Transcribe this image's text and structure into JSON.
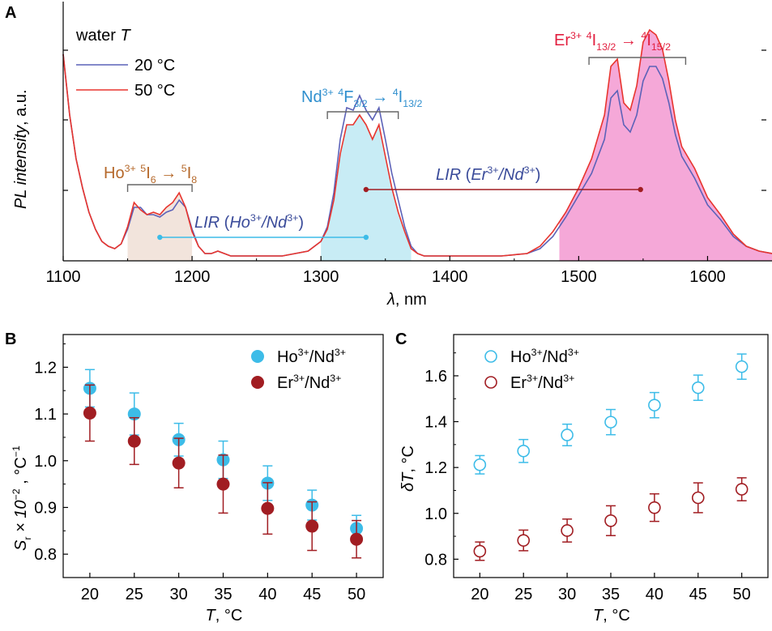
{
  "colors": {
    "blue_line": "#5c62b8",
    "red_line": "#e8352e",
    "ho_marker": "#3dbce8",
    "er_marker": "#a11d22",
    "ho_fill": "#f2e4dc",
    "nd_fill": "#c8ecf5",
    "er_fill": "#f5a8d8",
    "ho_text": "#b5682a",
    "nd_text": "#2f8fce",
    "er_text": "#e21f3f",
    "lir_text": "#3a4b9a",
    "lir_ho_line": "#3dbce8",
    "lir_er_line": "#a11d22"
  },
  "chart_data": [
    {
      "panel": "A",
      "type": "line",
      "xlabel_symbol": "λ",
      "xlabel_unit": ", nm",
      "ylabel_a": "PL intensity",
      "ylabel_b": ", a.u.",
      "xlim": [
        1100,
        1650
      ],
      "ylim": [
        0,
        1
      ],
      "x_ticks": [
        1100,
        1200,
        1300,
        1400,
        1500,
        1600
      ],
      "y_ticks_labeled": false,
      "legend_title_a": "water ",
      "legend_title_b": "T",
      "legend_position": "top-left",
      "series": [
        {
          "name": "20 °C",
          "color": "#5c62b8",
          "points": [
            [
              1100,
              0.85
            ],
            [
              1105,
              0.6
            ],
            [
              1110,
              0.42
            ],
            [
              1115,
              0.3
            ],
            [
              1120,
              0.2
            ],
            [
              1125,
              0.13
            ],
            [
              1130,
              0.08
            ],
            [
              1135,
              0.06
            ],
            [
              1140,
              0.05
            ],
            [
              1145,
              0.07
            ],
            [
              1150,
              0.13
            ],
            [
              1155,
              0.22
            ],
            [
              1160,
              0.22
            ],
            [
              1165,
              0.19
            ],
            [
              1170,
              0.19
            ],
            [
              1175,
              0.18
            ],
            [
              1180,
              0.2
            ],
            [
              1185,
              0.21
            ],
            [
              1190,
              0.25
            ],
            [
              1195,
              0.22
            ],
            [
              1200,
              0.13
            ],
            [
              1205,
              0.06
            ],
            [
              1210,
              0.03
            ],
            [
              1215,
              0.03
            ],
            [
              1220,
              0.04
            ],
            [
              1225,
              0.03
            ],
            [
              1230,
              0.02
            ],
            [
              1240,
              0.02
            ],
            [
              1250,
              0.02
            ],
            [
              1260,
              0.02
            ],
            [
              1270,
              0.02
            ],
            [
              1280,
              0.03
            ],
            [
              1290,
              0.04
            ],
            [
              1300,
              0.08
            ],
            [
              1305,
              0.14
            ],
            [
              1310,
              0.28
            ],
            [
              1315,
              0.5
            ],
            [
              1320,
              0.63
            ],
            [
              1325,
              0.62
            ],
            [
              1330,
              0.68
            ],
            [
              1335,
              0.62
            ],
            [
              1340,
              0.58
            ],
            [
              1345,
              0.63
            ],
            [
              1350,
              0.5
            ],
            [
              1355,
              0.36
            ],
            [
              1360,
              0.25
            ],
            [
              1365,
              0.14
            ],
            [
              1370,
              0.06
            ],
            [
              1375,
              0.03
            ],
            [
              1380,
              0.02
            ],
            [
              1400,
              0.02
            ],
            [
              1420,
              0.02
            ],
            [
              1440,
              0.02
            ],
            [
              1460,
              0.03
            ],
            [
              1470,
              0.05
            ],
            [
              1480,
              0.1
            ],
            [
              1490,
              0.18
            ],
            [
              1500,
              0.27
            ],
            [
              1510,
              0.36
            ],
            [
              1520,
              0.5
            ],
            [
              1525,
              0.67
            ],
            [
              1530,
              0.7
            ],
            [
              1535,
              0.56
            ],
            [
              1540,
              0.53
            ],
            [
              1545,
              0.6
            ],
            [
              1550,
              0.74
            ],
            [
              1555,
              0.8
            ],
            [
              1560,
              0.8
            ],
            [
              1565,
              0.75
            ],
            [
              1570,
              0.65
            ],
            [
              1575,
              0.52
            ],
            [
              1580,
              0.43
            ],
            [
              1590,
              0.34
            ],
            [
              1600,
              0.23
            ],
            [
              1610,
              0.17
            ],
            [
              1620,
              0.1
            ],
            [
              1630,
              0.06
            ],
            [
              1640,
              0.04
            ],
            [
              1650,
              0.03
            ]
          ]
        },
        {
          "name": "50 °C",
          "color": "#e8352e",
          "points": [
            [
              1100,
              0.85
            ],
            [
              1105,
              0.6
            ],
            [
              1110,
              0.42
            ],
            [
              1115,
              0.3
            ],
            [
              1120,
              0.2
            ],
            [
              1125,
              0.13
            ],
            [
              1130,
              0.08
            ],
            [
              1135,
              0.06
            ],
            [
              1140,
              0.05
            ],
            [
              1145,
              0.07
            ],
            [
              1150,
              0.14
            ],
            [
              1155,
              0.24
            ],
            [
              1160,
              0.21
            ],
            [
              1165,
              0.19
            ],
            [
              1170,
              0.2
            ],
            [
              1175,
              0.19
            ],
            [
              1180,
              0.22
            ],
            [
              1185,
              0.24
            ],
            [
              1190,
              0.28
            ],
            [
              1195,
              0.22
            ],
            [
              1200,
              0.12
            ],
            [
              1205,
              0.06
            ],
            [
              1210,
              0.03
            ],
            [
              1215,
              0.03
            ],
            [
              1220,
              0.04
            ],
            [
              1225,
              0.03
            ],
            [
              1230,
              0.02
            ],
            [
              1240,
              0.02
            ],
            [
              1250,
              0.02
            ],
            [
              1260,
              0.02
            ],
            [
              1270,
              0.02
            ],
            [
              1280,
              0.03
            ],
            [
              1290,
              0.04
            ],
            [
              1300,
              0.08
            ],
            [
              1305,
              0.13
            ],
            [
              1310,
              0.25
            ],
            [
              1315,
              0.44
            ],
            [
              1320,
              0.56
            ],
            [
              1325,
              0.56
            ],
            [
              1330,
              0.6
            ],
            [
              1335,
              0.56
            ],
            [
              1340,
              0.5
            ],
            [
              1345,
              0.56
            ],
            [
              1350,
              0.43
            ],
            [
              1355,
              0.3
            ],
            [
              1360,
              0.2
            ],
            [
              1365,
              0.12
            ],
            [
              1370,
              0.05
            ],
            [
              1375,
              0.03
            ],
            [
              1380,
              0.02
            ],
            [
              1400,
              0.02
            ],
            [
              1420,
              0.02
            ],
            [
              1440,
              0.02
            ],
            [
              1460,
              0.03
            ],
            [
              1470,
              0.06
            ],
            [
              1480,
              0.12
            ],
            [
              1490,
              0.2
            ],
            [
              1500,
              0.3
            ],
            [
              1510,
              0.42
            ],
            [
              1520,
              0.6
            ],
            [
              1525,
              0.8
            ],
            [
              1530,
              0.83
            ],
            [
              1535,
              0.65
            ],
            [
              1540,
              0.62
            ],
            [
              1545,
              0.72
            ],
            [
              1550,
              0.9
            ],
            [
              1555,
              0.95
            ],
            [
              1560,
              0.93
            ],
            [
              1565,
              0.87
            ],
            [
              1570,
              0.74
            ],
            [
              1575,
              0.58
            ],
            [
              1580,
              0.47
            ],
            [
              1590,
              0.38
            ],
            [
              1600,
              0.26
            ],
            [
              1610,
              0.19
            ],
            [
              1620,
              0.11
            ],
            [
              1630,
              0.06
            ],
            [
              1640,
              0.04
            ],
            [
              1650,
              0.03
            ]
          ]
        }
      ],
      "bands": [
        {
          "label_ion": "Ho",
          "range": [
            1150,
            1200
          ],
          "fill": "#f2e4dc",
          "bracket": [
            1150,
            1200
          ]
        },
        {
          "label_ion": "Nd",
          "range": [
            1300,
            1370
          ],
          "fill": "#c8ecf5",
          "bracket": [
            1305,
            1360
          ]
        },
        {
          "label_ion": "Er",
          "range": [
            1485,
            1650
          ],
          "fill": "#f5a8d8",
          "bracket": [
            1508,
            1583
          ]
        }
      ],
      "transitions": {
        "ho": {
          "ion": "Ho",
          "charge": "3+",
          "lower_sup": "5",
          "lower_main": "I",
          "lower_sub": "6",
          "arrow": "→",
          "upper_sup": "5",
          "upper_main": "I",
          "upper_sub": "8"
        },
        "nd": {
          "ion": "Nd",
          "charge": "3+",
          "lower_sup": "4",
          "lower_main": "F",
          "lower_sub": "3/2",
          "arrow": "→",
          "upper_sup": "4",
          "upper_main": "I",
          "upper_sub": "13/2"
        },
        "er": {
          "ion": "Er",
          "charge": "3+",
          "lower_sup": "4",
          "lower_main": "I",
          "lower_sub": "13/2",
          "arrow": "→",
          "upper_sup": "4",
          "upper_main": "I",
          "upper_sub": "15/2"
        }
      },
      "lir": {
        "ho_nd": {
          "prefix": "LIR",
          "open": " (",
          "num": "Ho",
          "num_sup": "3+",
          "slash": "/",
          "den": "Nd",
          "den_sup": "3+",
          "close": ")",
          "x_from": 1175,
          "x_to": 1335,
          "y": 0.19
        },
        "er_nd": {
          "prefix": "LIR",
          "open": " (",
          "num": "Er",
          "num_sup": "3+",
          "slash": "/",
          "den": "Nd",
          "den_sup": "3+",
          "close": ")",
          "x_from": 1335,
          "x_to": 1548,
          "y": 0.5
        }
      }
    },
    {
      "panel": "B",
      "type": "scatter",
      "xlabel": "T",
      "xlabel_unit": ", °C",
      "ylabel_main": "S",
      "ylabel_sub": "r",
      "ylabel_mid": " × 10",
      "ylabel_exp": "−2",
      "ylabel_unit": " , °C",
      "ylabel_unit_exp": "−1",
      "xlim": [
        17,
        53
      ],
      "ylim": [
        0.75,
        1.27
      ],
      "x_ticks": [
        20,
        25,
        30,
        35,
        40,
        45,
        50
      ],
      "y_ticks": [
        0.8,
        0.9,
        1.0,
        1.1,
        1.2
      ],
      "y_tick_labels": [
        "0.8",
        "0.9",
        "1.0",
        "1.1",
        "1.2"
      ],
      "legend_position": "top-right",
      "series": [
        {
          "ion": "Ho",
          "ion_sup": "3+",
          "slash": "/",
          "ref": "Nd",
          "ref_sup": "3+",
          "marker": "filled",
          "color": "#3dbce8",
          "x": [
            20,
            25,
            30,
            35,
            40,
            45,
            50
          ],
          "y": [
            1.155,
            1.1,
            1.045,
            1.002,
            0.952,
            0.905,
            0.855
          ],
          "err": [
            0.04,
            0.045,
            0.035,
            0.04,
            0.037,
            0.032,
            0.028
          ]
        },
        {
          "ion": "Er",
          "ion_sup": "3+",
          "slash": "/",
          "ref": "Nd",
          "ref_sup": "3+",
          "marker": "filled",
          "color": "#a11d22",
          "x": [
            20,
            25,
            30,
            35,
            40,
            45,
            50
          ],
          "y": [
            1.102,
            1.042,
            0.995,
            0.95,
            0.898,
            0.86,
            0.832
          ],
          "err": [
            0.06,
            0.05,
            0.053,
            0.062,
            0.055,
            0.052,
            0.04
          ]
        }
      ]
    },
    {
      "panel": "C",
      "type": "scatter",
      "xlabel": "T",
      "xlabel_unit": ", °C",
      "ylabel_main": "δT",
      "ylabel_unit": ", °C",
      "xlim": [
        17,
        53
      ],
      "ylim": [
        0.72,
        1.78
      ],
      "x_ticks": [
        20,
        25,
        30,
        35,
        40,
        45,
        50
      ],
      "y_ticks": [
        0.8,
        1.0,
        1.2,
        1.4,
        1.6
      ],
      "y_tick_labels": [
        "0.8",
        "1.0",
        "1.2",
        "1.4",
        "1.6"
      ],
      "legend_position": "top-left",
      "series": [
        {
          "ion": "Ho",
          "ion_sup": "3+",
          "slash": "/",
          "ref": "Nd",
          "ref_sup": "3+",
          "marker": "open",
          "color": "#3dbce8",
          "x": [
            20,
            25,
            30,
            35,
            40,
            45,
            50
          ],
          "y": [
            1.212,
            1.272,
            1.342,
            1.398,
            1.472,
            1.548,
            1.64
          ],
          "err": [
            0.04,
            0.05,
            0.047,
            0.055,
            0.055,
            0.055,
            0.055
          ]
        },
        {
          "ion": "Er",
          "ion_sup": "3+",
          "slash": "/",
          "ref": "Nd",
          "ref_sup": "3+",
          "marker": "open",
          "color": "#a11d22",
          "x": [
            20,
            25,
            30,
            35,
            40,
            45,
            50
          ],
          "y": [
            0.835,
            0.882,
            0.925,
            0.968,
            1.025,
            1.068,
            1.105
          ],
          "err": [
            0.04,
            0.045,
            0.05,
            0.065,
            0.06,
            0.065,
            0.05
          ]
        }
      ]
    }
  ],
  "panel_labels": {
    "a": "A",
    "b": "B",
    "c": "C"
  }
}
